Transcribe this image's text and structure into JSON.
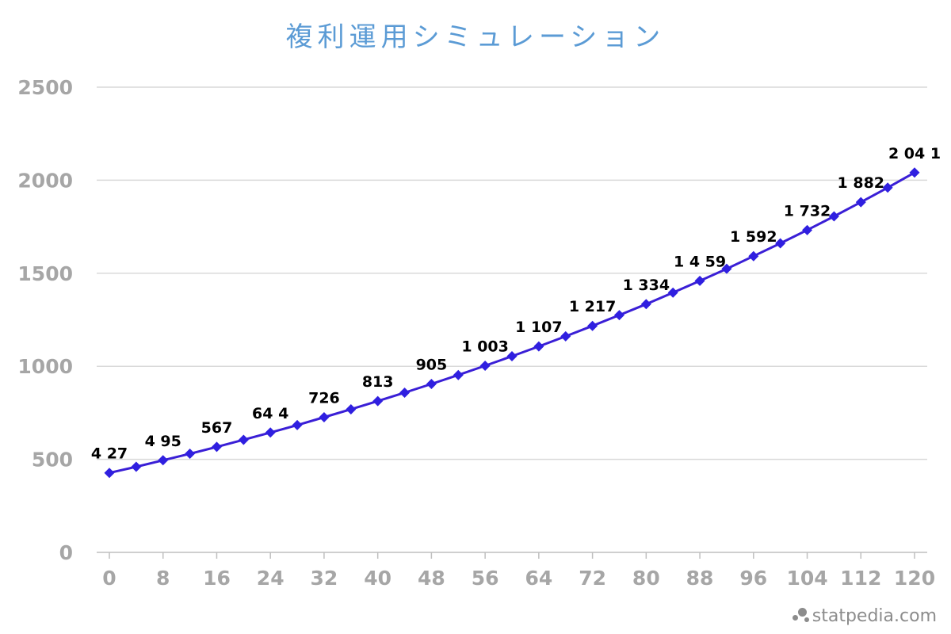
{
  "watermark": "statpedia.com",
  "chart_data": {
    "type": "line",
    "title": "複利運用シミュレーション",
    "xlabel": "",
    "ylabel": "",
    "xlim": [
      0,
      120
    ],
    "ylim": [
      0,
      2500
    ],
    "yticks": [
      0,
      500,
      1000,
      1500,
      2000,
      2500
    ],
    "xticks": [
      0,
      8,
      16,
      24,
      32,
      40,
      48,
      56,
      64,
      72,
      80,
      88,
      96,
      104,
      112,
      120
    ],
    "grid": true,
    "legend": "none",
    "colors": {
      "line": "#3a1fd6",
      "marker": "#2f1fe0",
      "title": "#5b9bd5",
      "ticks": "#a6a6a6",
      "grid": "#d9d9d9"
    },
    "series": [
      {
        "x": [
          0,
          4,
          8,
          12,
          16,
          20,
          24,
          28,
          32,
          36,
          40,
          44,
          48,
          52,
          56,
          60,
          64,
          68,
          72,
          76,
          80,
          84,
          88,
          92,
          96,
          100,
          104,
          108,
          112,
          116,
          120
        ],
        "y": [
          427,
          460,
          495,
          530,
          567,
          605,
          644,
          684,
          726,
          769,
          813,
          858,
          905,
          953,
          1003,
          1054,
          1107,
          1161,
          1217,
          1275,
          1334,
          1396,
          1459,
          1524,
          1592,
          1661,
          1732,
          1806,
          1882,
          1960,
          2041
        ]
      }
    ],
    "data_labels": [
      {
        "x": 0,
        "text": "4 27"
      },
      {
        "x": 8,
        "text": "4 95"
      },
      {
        "x": 16,
        "text": "567"
      },
      {
        "x": 24,
        "text": "64 4"
      },
      {
        "x": 32,
        "text": "726"
      },
      {
        "x": 40,
        "text": "813"
      },
      {
        "x": 48,
        "text": "905"
      },
      {
        "x": 56,
        "text": "1 003"
      },
      {
        "x": 64,
        "text": "1 107"
      },
      {
        "x": 72,
        "text": "1 217"
      },
      {
        "x": 80,
        "text": "1 334"
      },
      {
        "x": 88,
        "text": "1 4 59"
      },
      {
        "x": 96,
        "text": "1 592"
      },
      {
        "x": 104,
        "text": "1 732"
      },
      {
        "x": 112,
        "text": "1 882"
      },
      {
        "x": 120,
        "text": "2 04 1"
      }
    ]
  }
}
